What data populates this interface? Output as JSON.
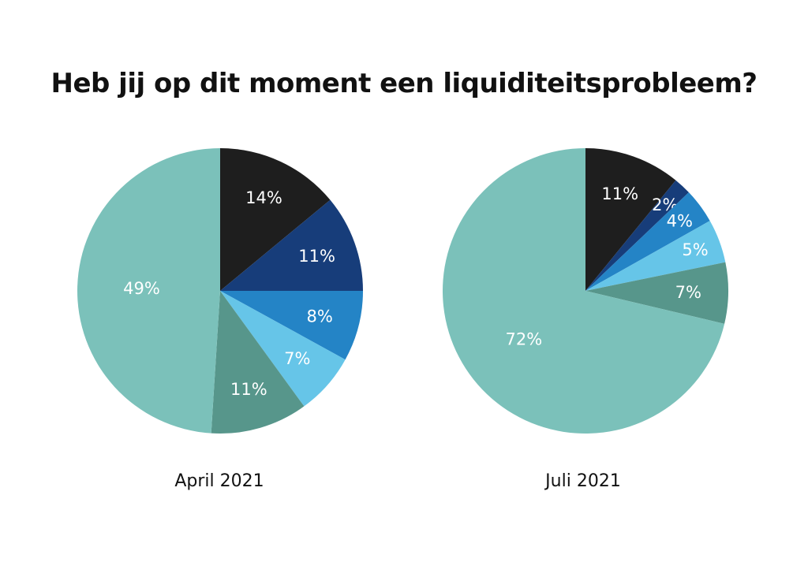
{
  "title": "Heb jij op dit moment een liquiditeitsprobleem?",
  "chart_data": [
    {
      "type": "pie",
      "caption": "April 2021",
      "slices": [
        {
          "value": 14,
          "label": "14%",
          "color": "#1e1e1e"
        },
        {
          "value": 11,
          "label": "11%",
          "color": "#173d7a"
        },
        {
          "value": 8,
          "label": "8%",
          "color": "#2484c6"
        },
        {
          "value": 7,
          "label": "7%",
          "color": "#66c5e8"
        },
        {
          "value": 11,
          "label": "11%",
          "color": "#57968b"
        },
        {
          "value": 49,
          "label": "49%",
          "color": "#7bc1ba"
        }
      ]
    },
    {
      "type": "pie",
      "caption": "Juli 2021",
      "slices": [
        {
          "value": 11,
          "label": "11%",
          "color": "#1e1e1e"
        },
        {
          "value": 2,
          "label": "2%",
          "color": "#173d7a"
        },
        {
          "value": 4,
          "label": "4%",
          "color": "#2484c6"
        },
        {
          "value": 5,
          "label": "5%",
          "color": "#66c5e8"
        },
        {
          "value": 7,
          "label": "7%",
          "color": "#57968b"
        },
        {
          "value": 72,
          "label": "72%",
          "color": "#7bc1ba"
        }
      ]
    }
  ]
}
